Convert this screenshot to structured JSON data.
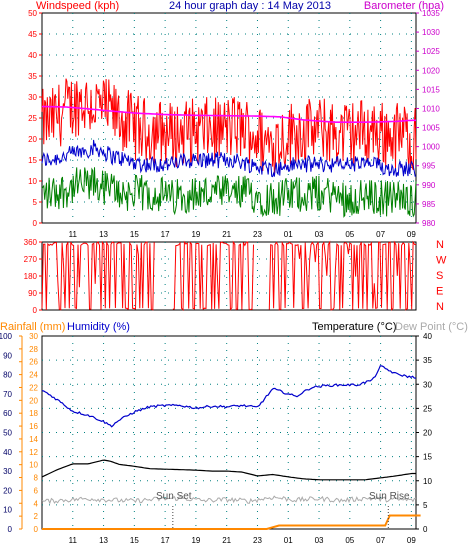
{
  "header": {
    "left_title": "Windspeed (kph)",
    "center_title": "24 hour graph day : 14 May 2013",
    "right_title": "Barometer (hpa)"
  },
  "bottom_header": {
    "rainfall": "Rainfall (mm)",
    "humidity": "Humidity (%)",
    "temperature": "Temperature (°C)",
    "dewpoint": "Dew Point (°C)"
  },
  "annotations": {
    "sunset": "Sun Set",
    "sunrise": "Sun Rise"
  },
  "colors": {
    "wind_axis": "#ff0000",
    "baro_axis": "#cc00cc",
    "avg_wind": "#0000cc",
    "gust": "#ff0000",
    "low_wind": "#008000",
    "barometer": "#ff00ff",
    "direction": "#ff0000",
    "humidity": "#0000cc",
    "temperature": "#000000",
    "dewpoint": "#aaaaaa",
    "rainfall": "#ff8800",
    "rain_axis": "#ff8800",
    "hum_axis": "#0000cc",
    "frame": "#000000",
    "grid": "#008080"
  },
  "chart_data": [
    {
      "type": "line",
      "title": "24 hour graph day : 14 May 2013",
      "x_tick_labels": [
        "11",
        "13",
        "15",
        "17",
        "19",
        "21",
        "23",
        "01",
        "03",
        "05",
        "07",
        "09"
      ],
      "y_left": {
        "label": "Windspeed (kph)",
        "ticks": [
          0,
          5,
          10,
          15,
          20,
          25,
          30,
          35,
          40,
          45,
          50
        ],
        "range": [
          0,
          50
        ]
      },
      "y_right": {
        "label": "Barometer (hpa)",
        "ticks": [
          980,
          985,
          990,
          995,
          1000,
          1005,
          1010,
          1015,
          1020,
          1025,
          1030,
          1035
        ],
        "range": [
          980,
          1035
        ]
      },
      "series": [
        {
          "name": "gust",
          "x_hours": [
            9.5,
            10.5,
            11.5,
            12.5,
            13.5,
            14.5,
            15.5,
            16.5,
            17.5,
            18.5,
            19.5,
            20.5,
            21.5,
            22.5,
            23.5,
            24.5,
            25.5,
            26.5,
            27.5,
            28.5,
            29.5,
            30.5,
            31.5,
            32.5,
            33.5
          ],
          "values": [
            24,
            27,
            29,
            28,
            26,
            24,
            22,
            22,
            21,
            22,
            22,
            22,
            23,
            22,
            19,
            20,
            22,
            22,
            22,
            21,
            22,
            22,
            21,
            21,
            20
          ]
        },
        {
          "name": "avg",
          "x_hours": [
            9.5,
            10.5,
            11.5,
            12.5,
            13.5,
            14.5,
            15.5,
            16.5,
            17.5,
            18.5,
            19.5,
            20.5,
            21.5,
            22.5,
            23.5,
            24.5,
            25.5,
            26.5,
            27.5,
            28.5,
            29.5,
            30.5,
            31.5,
            32.5,
            33.5
          ],
          "values": [
            15,
            16,
            17,
            18,
            16,
            15,
            14,
            14,
            14,
            15,
            15,
            15,
            15,
            14,
            13,
            13,
            14,
            14,
            14,
            14,
            14,
            14,
            13,
            13,
            13
          ]
        },
        {
          "name": "low",
          "x_hours": [
            9.5,
            10.5,
            11.5,
            12.5,
            13.5,
            14.5,
            15.5,
            16.5,
            17.5,
            18.5,
            19.5,
            20.5,
            21.5,
            22.5,
            23.5,
            24.5,
            25.5,
            26.5,
            27.5,
            28.5,
            29.5,
            30.5,
            31.5,
            32.5,
            33.5
          ],
          "values": [
            7,
            8,
            9,
            9,
            8,
            7,
            7,
            7,
            6,
            7,
            7,
            7,
            7,
            7,
            6,
            6,
            7,
            7,
            7,
            6,
            6,
            6,
            6,
            6,
            6
          ]
        },
        {
          "name": "barometer",
          "x_hours": [
            9.0,
            10.5,
            12.0,
            13.0,
            15.0,
            17.0,
            19.0,
            21.0,
            23.0,
            24.5,
            26.0,
            28.0,
            30.0,
            32.0,
            33.0
          ],
          "values": [
            1010.5,
            1010.4,
            1009.9,
            1009.5,
            1008.8,
            1008.4,
            1008.2,
            1008.1,
            1008.0,
            1007.8,
            1007.0,
            1006.4,
            1006.4,
            1006.6,
            1006.9
          ]
        }
      ]
    },
    {
      "type": "line",
      "series_name": "wind direction",
      "y_ticks": [
        0,
        90,
        180,
        270,
        360
      ],
      "y_range": [
        0,
        360
      ],
      "compass_labels": [
        "N",
        "W",
        "S",
        "E",
        "N"
      ],
      "gap_hours": [
        [
          16.3,
          17.5
        ],
        [
          22.8,
          23.7
        ]
      ],
      "x_tick_labels": [
        "11",
        "13",
        "15",
        "17",
        "19",
        "21",
        "23",
        "01",
        "03",
        "05",
        "07",
        "09"
      ]
    },
    {
      "type": "line",
      "x_tick_labels": [
        "11",
        "13",
        "15",
        "17",
        "19",
        "21",
        "23",
        "01",
        "03",
        "05",
        "07",
        "09"
      ],
      "y_left_outer": {
        "label": "Rainfall (mm)",
        "ticks": [
          0,
          10,
          20,
          30,
          40,
          50,
          60,
          70,
          80,
          90,
          100
        ],
        "range": [
          0,
          100
        ]
      },
      "y_left_inner": {
        "label": "Humidity (%)",
        "ticks": [
          0,
          2,
          4,
          6,
          8,
          10,
          12,
          14,
          16,
          18,
          20,
          22,
          24,
          26,
          28,
          30
        ],
        "range": [
          0,
          30
        ]
      },
      "y_right": {
        "label": "Temperature (°C)",
        "ticks": [
          0,
          5,
          10,
          15,
          20,
          25,
          30,
          35,
          40
        ],
        "range": [
          0,
          40
        ]
      },
      "series": [
        {
          "name": "humidity",
          "x_hours": [
            9.0,
            10.0,
            11.0,
            12.0,
            13.0,
            13.5,
            14.0,
            15.0,
            16.0,
            17.0,
            18.0,
            19.0,
            20.0,
            21.0,
            22.0,
            23.0,
            24.0,
            24.5,
            25.5,
            26.5,
            27.5,
            28.5,
            29.5,
            30.5,
            31.0,
            31.5,
            32.0,
            33.0
          ],
          "values": [
            21.6,
            20.1,
            18.3,
            17.7,
            16.7,
            16.0,
            16.9,
            18.2,
            19.0,
            19.2,
            19.2,
            18.8,
            19.1,
            19.0,
            19.2,
            18.9,
            21.8,
            21.4,
            20.6,
            22.0,
            22.3,
            22.4,
            22.4,
            23.2,
            25.3,
            24.7,
            24.1,
            23.6
          ]
        },
        {
          "name": "temperature",
          "x_hours": [
            9.0,
            10.0,
            11.0,
            12.0,
            13.0,
            13.5,
            14.0,
            15.0,
            16.0,
            17.0,
            18.0,
            19.0,
            20.0,
            21.0,
            22.0,
            23.0,
            24.0,
            25.0,
            26.0,
            27.0,
            28.0,
            29.0,
            30.0,
            31.0,
            32.0,
            33.0
          ],
          "values": [
            10.8,
            12.3,
            13.5,
            13.5,
            14.3,
            14.0,
            13.4,
            13.0,
            12.5,
            12.4,
            12.3,
            12.2,
            12.0,
            12.0,
            11.8,
            11.0,
            11.3,
            10.8,
            10.4,
            10.2,
            10.2,
            10.2,
            10.2,
            10.6,
            11.0,
            11.5
          ]
        },
        {
          "name": "dewpoint",
          "x_hours": [
            9.0,
            10.5,
            12.0,
            13.5,
            15.0,
            16.5,
            18.0,
            19.5,
            21.0,
            22.5,
            24.0,
            25.5,
            27.0,
            28.5,
            30.0,
            31.5,
            33.0
          ],
          "values": [
            5.7,
            6.0,
            6.3,
            6.0,
            5.8,
            6.2,
            6.4,
            5.9,
            6.1,
            5.8,
            6.6,
            6.0,
            6.3,
            5.9,
            6.4,
            6.1,
            6.0
          ]
        },
        {
          "name": "rainfall",
          "x_hours": [
            9.0,
            23.6,
            24.4,
            31.3,
            31.6,
            33.6
          ],
          "values": [
            0.0,
            0.0,
            1.8,
            1.8,
            7.0,
            7.0
          ]
        }
      ],
      "markers": {
        "sunset_hour": 17.5,
        "sunrise_hour": 31.5
      }
    }
  ]
}
